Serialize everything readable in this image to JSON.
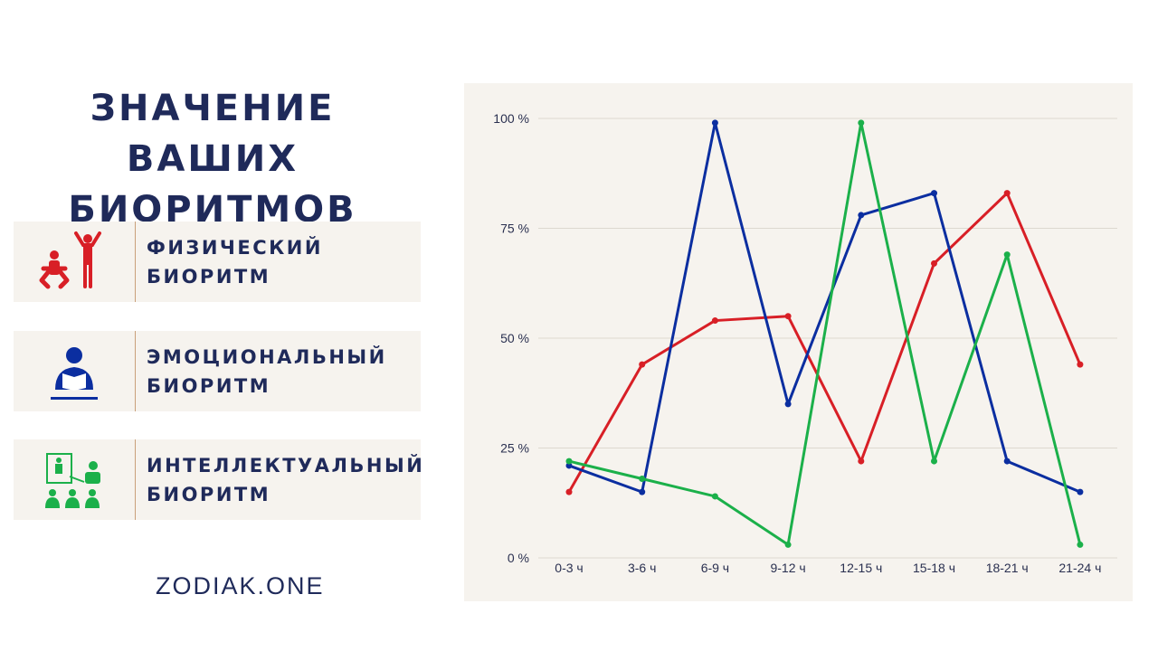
{
  "title_lines": [
    "ЗНАЧЕНИЕ ВАШИХ",
    "БИОРИТМОВ"
  ],
  "cards": [
    {
      "lines": [
        "ФИЗИЧЕСКИЙ",
        "БИОРИТМ"
      ],
      "icon": "exercise-icon",
      "color": "#d81f26"
    },
    {
      "lines": [
        "ЭМОЦИОНАЛЬНЫЙ",
        "БИОРИТМ"
      ],
      "icon": "reading-person-icon",
      "color": "#0b2ea0"
    },
    {
      "lines": [
        "ИНТЕЛЛЕКТУАЛЬНЫЙ",
        "БИОРИТМ"
      ],
      "icon": "teacher-class-icon",
      "color": "#1bb04a"
    }
  ],
  "brand": "ZODIAK.ONE",
  "chart_data": {
    "type": "line",
    "categories": [
      "0-3 ч",
      "3-6 ч",
      "6-9 ч",
      "9-12 ч",
      "12-15 ч",
      "15-18 ч",
      "18-21 ч",
      "21-24 ч"
    ],
    "ylim": [
      0,
      100
    ],
    "yticks": [
      0,
      25,
      50,
      75,
      100
    ],
    "ytick_labels": [
      "0 %",
      "25 %",
      "50 %",
      "75 %",
      "100 %"
    ],
    "grid": true,
    "series": [
      {
        "name": "Физический биоритм",
        "color": "#d81f26",
        "values": [
          15,
          44,
          54,
          55,
          22,
          67,
          83,
          44
        ]
      },
      {
        "name": "Эмоциональный биоритм",
        "color": "#0b2ea0",
        "values": [
          21,
          15,
          99,
          35,
          78,
          83,
          22,
          15
        ]
      },
      {
        "name": "Интеллектуальный биоритм",
        "color": "#1bb04a",
        "values": [
          22,
          18,
          14,
          3,
          99,
          22,
          69,
          3
        ]
      }
    ]
  }
}
